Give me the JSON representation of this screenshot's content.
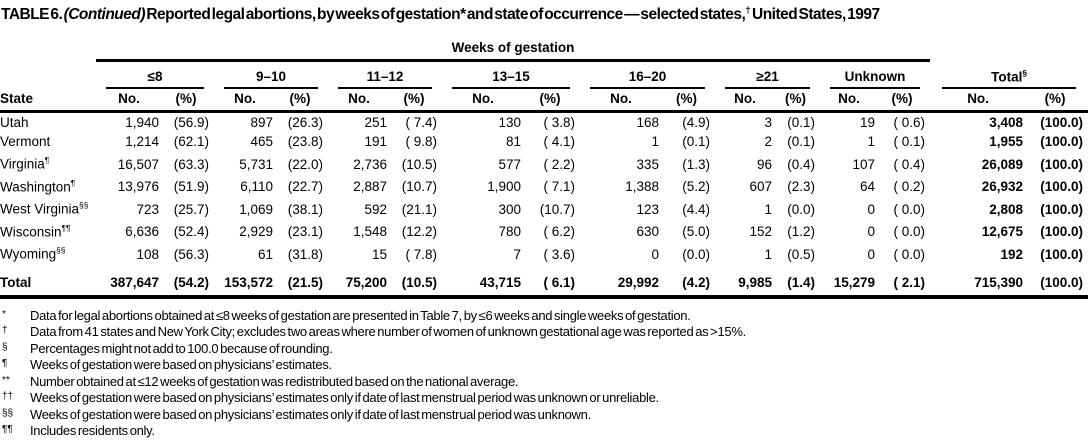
{
  "title": {
    "part1": "TABLE 6. ",
    "continued": "(Continued)",
    "part2": " Reported legal abortions, by weeks of gestation* and state of occurrence — selected states,",
    "dagger": "†",
    "part3": " United States, 1997"
  },
  "table": {
    "span_header": "Weeks of gestation",
    "state_header": "State",
    "no_header": "No.",
    "pct_header": "(%)",
    "groups": [
      {
        "label": "≤8"
      },
      {
        "label": "9–10"
      },
      {
        "label": "11–12"
      },
      {
        "label": "13–15"
      },
      {
        "label": "16–20"
      },
      {
        "label": "≥21"
      },
      {
        "label": "Unknown"
      }
    ],
    "total_group": {
      "label": "Total",
      "sup": "§"
    },
    "rows": [
      {
        "state": "Utah",
        "sup": "",
        "cells": [
          "1,940",
          "(56.9)",
          "897",
          "(26.3)",
          "251",
          "( 7.4)",
          "130",
          "( 3.8)",
          "168",
          "(4.9)",
          "3",
          "(0.1)",
          "19",
          "( 0.6)",
          "3,408",
          "(100.0)"
        ]
      },
      {
        "state": "Vermont",
        "sup": "",
        "cells": [
          "1,214",
          "(62.1)",
          "465",
          "(23.8)",
          "191",
          "( 9.8)",
          "81",
          "( 4.1)",
          "1",
          "(0.1)",
          "2",
          "(0.1)",
          "1",
          "( 0.1)",
          "1,955",
          "(100.0)"
        ]
      },
      {
        "state": "Virginia",
        "sup": "¶",
        "cells": [
          "16,507",
          "(63.3)",
          "5,731",
          "(22.0)",
          "2,736",
          "(10.5)",
          "577",
          "( 2.2)",
          "335",
          "(1.3)",
          "96",
          "(0.4)",
          "107",
          "( 0.4)",
          "26,089",
          "(100.0)"
        ]
      },
      {
        "state": "Washington",
        "sup": "¶",
        "cells": [
          "13,976",
          "(51.9)",
          "6,110",
          "(22.7)",
          "2,887",
          "(10.7)",
          "1,900",
          "( 7.1)",
          "1,388",
          "(5.2)",
          "607",
          "(2.3)",
          "64",
          "( 0.2)",
          "26,932",
          "(100.0)"
        ]
      },
      {
        "state": "West Virginia",
        "sup": "§§",
        "cells": [
          "723",
          "(25.7)",
          "1,069",
          "(38.1)",
          "592",
          "(21.1)",
          "300",
          "(10.7)",
          "123",
          "(4.4)",
          "1",
          "(0.0)",
          "0",
          "( 0.0)",
          "2,808",
          "(100.0)"
        ]
      },
      {
        "state": "Wisconsin",
        "sup": "¶¶",
        "cells": [
          "6,636",
          "(52.4)",
          "2,929",
          "(23.1)",
          "1,548",
          "(12.2)",
          "780",
          "( 6.2)",
          "630",
          "(5.0)",
          "152",
          "(1.2)",
          "0",
          "( 0.0)",
          "12,675",
          "(100.0)"
        ]
      },
      {
        "state": "Wyoming",
        "sup": "§§",
        "cells": [
          "108",
          "(56.3)",
          "61",
          "(31.8)",
          "15",
          "( 7.8)",
          "7",
          "( 3.6)",
          "0",
          "(0.0)",
          "1",
          "(0.5)",
          "0",
          "( 0.0)",
          "192",
          "(100.0)"
        ]
      }
    ],
    "total_row": {
      "state": "Total",
      "sup": "",
      "cells": [
        "387,647",
        "(54.2)",
        "153,572",
        "(21.5)",
        "75,200",
        "(10.5)",
        "43,715",
        "( 6.1)",
        "29,992",
        "(4.2)",
        "9,985",
        "(1.4)",
        "15,279",
        "( 2.1)",
        "715,390",
        "(100.0)"
      ]
    }
  },
  "footnotes": [
    {
      "marker": "*",
      "text": "Data for legal abortions obtained at ≤8 weeks of gestation are presented in Table 7, by ≤6 weeks and single weeks of gestation."
    },
    {
      "marker": "†",
      "text": "Data from 41 states and New York City; excludes two areas where number of women of unknown gestational age was reported as >15%."
    },
    {
      "marker": "§",
      "text": "Percentages might not add to 100.0 because of rounding."
    },
    {
      "marker": "¶",
      "text": "Weeks of gestation were based on physicians’ estimates."
    },
    {
      "marker": "**",
      "text": "Number obtained at ≤12 weeks of gestation was redistributed based on the national average."
    },
    {
      "marker": "††",
      "text": "Weeks of gestation were based on physicians’ estimates only if date of last menstrual period was unknown or unreliable."
    },
    {
      "marker": "§§",
      "text": "Weeks of gestation were based on physicians’ estimates only if date of last menstrual period was unknown."
    },
    {
      "marker": "¶¶",
      "text": "Includes residents only."
    }
  ]
}
